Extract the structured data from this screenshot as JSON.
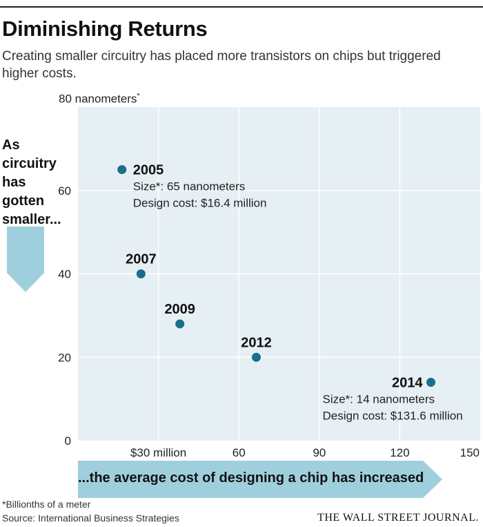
{
  "header": {
    "title": "Diminishing Returns",
    "subtitle": "Creating smaller circuitry has placed more transistors on chips but triggered higher costs."
  },
  "yunit_text": "80 nanometers",
  "yunit_mark": "*",
  "left_label": "As circuitry has gotten smaller...",
  "bottom_label": "...the average cost of designing a chip has increased",
  "footnote": "*Billionths of a meter",
  "source": "Source: International Business Strategies",
  "brand": "THE WALL STREET JOURNAL.",
  "colors": {
    "plot_bg": "#e6eff4",
    "point": "#1b6f8a",
    "arrow": "#9fcfdc",
    "grid": "#ffffff"
  },
  "chart_data": {
    "type": "scatter",
    "title": "Diminishing Returns",
    "xlabel": "...the average cost of designing a chip has increased",
    "ylabel": "As circuitry has gotten smaller...",
    "xlim": [
      0,
      150
    ],
    "ylim": [
      0,
      80
    ],
    "xticks": [
      {
        "value": 30,
        "label": "$30 million"
      },
      {
        "value": 60,
        "label": "60"
      },
      {
        "value": 90,
        "label": "90"
      },
      {
        "value": 120,
        "label": "120"
      },
      {
        "value": 150,
        "label": "150"
      }
    ],
    "yticks": [
      {
        "value": 0,
        "label": "0"
      },
      {
        "value": 20,
        "label": "20"
      },
      {
        "value": 40,
        "label": "40"
      },
      {
        "value": 60,
        "label": "60"
      }
    ],
    "grid": true,
    "points": [
      {
        "year": "2005",
        "x": 16.4,
        "y": 65,
        "size_text": "Size*: 65 nanometers",
        "cost_text": "Design cost: $16.4 million"
      },
      {
        "year": "2007",
        "x": 23.5,
        "y": 40
      },
      {
        "year": "2009",
        "x": 38,
        "y": 28
      },
      {
        "year": "2012",
        "x": 66.5,
        "y": 20
      },
      {
        "year": "2014",
        "x": 131.6,
        "y": 14,
        "size_text": "Size*: 14 nanometers",
        "cost_text": "Design cost: $131.6 million"
      }
    ]
  }
}
